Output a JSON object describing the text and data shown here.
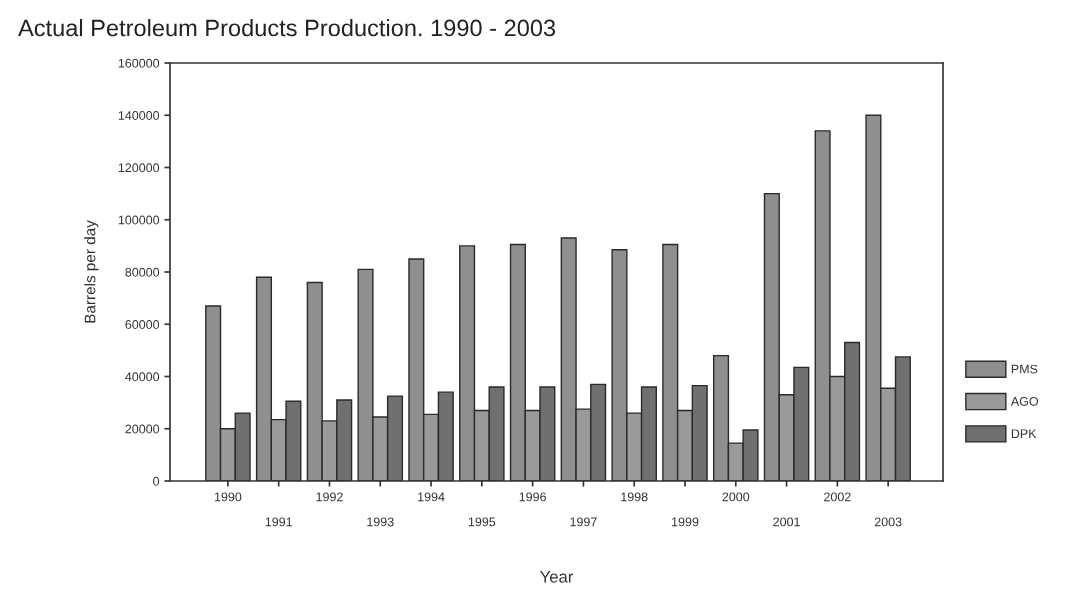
{
  "chart_data": {
    "type": "bar",
    "title": "Actual Petroleum Products Production. 1990 - 2003",
    "xlabel": "Year",
    "ylabel": "Barrels per day",
    "categories": [
      "1990",
      "1991",
      "1992",
      "1993",
      "1994",
      "1995",
      "1996",
      "1997",
      "1998",
      "1999",
      "2000",
      "2001",
      "2002",
      "2003"
    ],
    "series": [
      {
        "name": "PMS",
        "color": "#8f8f8f",
        "values": [
          67000,
          78000,
          76000,
          81000,
          85000,
          90000,
          90500,
          93000,
          88500,
          90500,
          48000,
          110000,
          134000,
          140000
        ]
      },
      {
        "name": "AGO",
        "color": "#9a9a9a",
        "values": [
          20000,
          23500,
          23000,
          24500,
          25500,
          27000,
          27000,
          27500,
          26000,
          27000,
          14500,
          33000,
          40000,
          35500
        ]
      },
      {
        "name": "DPK",
        "color": "#707070",
        "values": [
          26000,
          30500,
          31000,
          32500,
          34000,
          36000,
          36000,
          37000,
          36000,
          36500,
          19500,
          43500,
          53000,
          47500
        ]
      }
    ],
    "ylim": [
      0,
      160000
    ],
    "yticks": [
      0,
      20000,
      40000,
      60000,
      80000,
      100000,
      120000,
      140000,
      160000
    ],
    "grid": false,
    "legend": "right"
  }
}
